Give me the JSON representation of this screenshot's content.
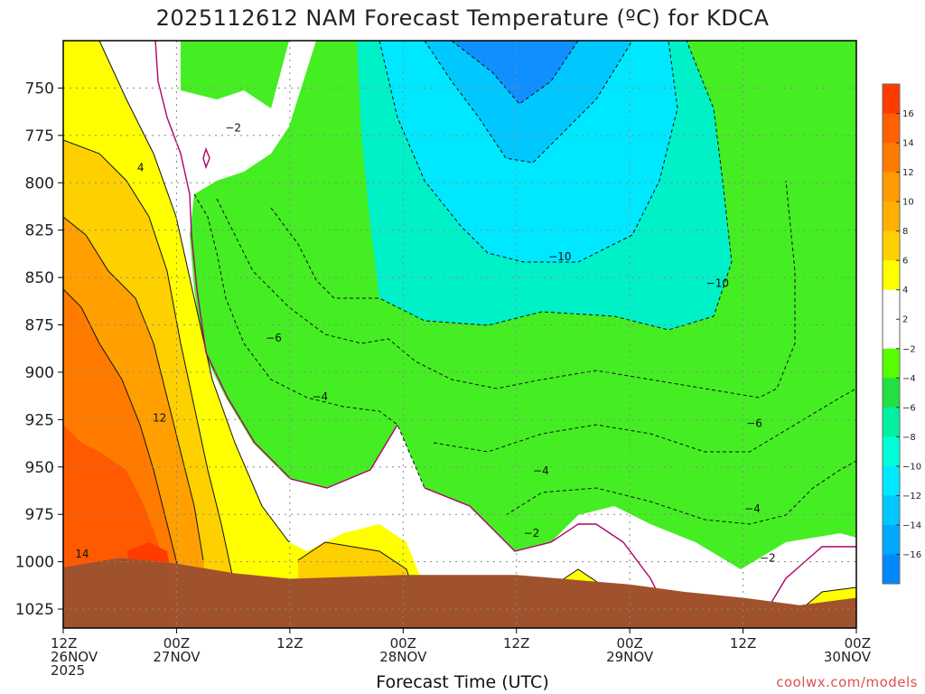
{
  "title": "2025112612 NAM Forecast Temperature (ºC) for KDCA",
  "xlabel": "Forecast Time (UTC)",
  "credit": "coolwx.com/models",
  "colors": {
    "ground": "#a0522d",
    "freezing_line": "#b0006e",
    "grid": "#888888"
  },
  "chart_data": {
    "type": "heatmap",
    "description_axes": "time-height cross section",
    "y_axis": {
      "label": "",
      "unit": "hPa",
      "ticks": [
        "750",
        "775",
        "800",
        "825",
        "850",
        "875",
        "900",
        "925",
        "950",
        "975",
        "1000",
        "1025"
      ],
      "range": [
        725,
        1035
      ],
      "inverted": true
    },
    "x_axis": {
      "label": "Forecast Time (UTC)",
      "ticks": [
        {
          "hour": 0,
          "line1": "12Z",
          "line2": "26NOV",
          "line3": "2025"
        },
        {
          "hour": 12,
          "line1": "00Z",
          "line2": "27NOV",
          "line3": ""
        },
        {
          "hour": 24,
          "line1": "12Z",
          "line2": "",
          "line3": ""
        },
        {
          "hour": 36,
          "line1": "00Z",
          "line2": "28NOV",
          "line3": ""
        },
        {
          "hour": 48,
          "line1": "12Z",
          "line2": "",
          "line3": ""
        },
        {
          "hour": 60,
          "line1": "00Z",
          "line2": "29NOV",
          "line3": ""
        },
        {
          "hour": 72,
          "line1": "12Z",
          "line2": "",
          "line3": ""
        },
        {
          "hour": 84,
          "line1": "00Z",
          "line2": "30NOV",
          "line3": ""
        }
      ],
      "range": [
        0,
        84
      ]
    },
    "colorbar": {
      "labels": [
        "16",
        "14",
        "12",
        "10",
        "8",
        "6",
        "4",
        "2",
        "-2",
        "-4",
        "-6",
        "-8",
        "-10",
        "-12",
        "-14",
        "-16"
      ],
      "colors": [
        "#ff3c00",
        "#ff6000",
        "#ff7b00",
        "#ff9a00",
        "#ffb000",
        "#ffd000",
        "#ffff00",
        "#ffffff",
        "#ffffff",
        "#55ff00",
        "#22e040",
        "#00f0a0",
        "#00ffd8",
        "#00e8ff",
        "#00c8ff",
        "#00a8ff",
        "#0088ff"
      ]
    },
    "contour_labels": [
      {
        "text": "−2",
        "hour": 18.0,
        "p": 771
      },
      {
        "text": "4",
        "hour": 8.2,
        "p": 792
      },
      {
        "text": "12",
        "hour": 10.2,
        "p": 924
      },
      {
        "text": "14",
        "hour": 2.0,
        "p": 996
      },
      {
        "text": "−6",
        "hour": 22.3,
        "p": 882
      },
      {
        "text": "−4",
        "hour": 27.2,
        "p": 913
      },
      {
        "text": "−10",
        "hour": 52.6,
        "p": 839
      },
      {
        "text": "−10",
        "hour": 69.3,
        "p": 853
      },
      {
        "text": "−4",
        "hour": 50.6,
        "p": 952
      },
      {
        "text": "−2",
        "hour": 49.6,
        "p": 985
      },
      {
        "text": "−6",
        "hour": 73.2,
        "p": 927
      },
      {
        "text": "−4",
        "hour": 73.0,
        "p": 972
      },
      {
        "text": "−2",
        "hour": 74.6,
        "p": 998
      }
    ],
    "ground_surface_p": [
      {
        "hour": 0,
        "p": 1003
      },
      {
        "hour": 6,
        "p": 998
      },
      {
        "hour": 12,
        "p": 1001
      },
      {
        "hour": 18,
        "p": 1006
      },
      {
        "hour": 24,
        "p": 1009
      },
      {
        "hour": 36,
        "p": 1007
      },
      {
        "hour": 48,
        "p": 1007
      },
      {
        "hour": 60,
        "p": 1012
      },
      {
        "hour": 66,
        "p": 1016
      },
      {
        "hour": 72,
        "p": 1019
      },
      {
        "hour": 78,
        "p": 1023
      },
      {
        "hour": 84,
        "p": 1019
      }
    ]
  }
}
